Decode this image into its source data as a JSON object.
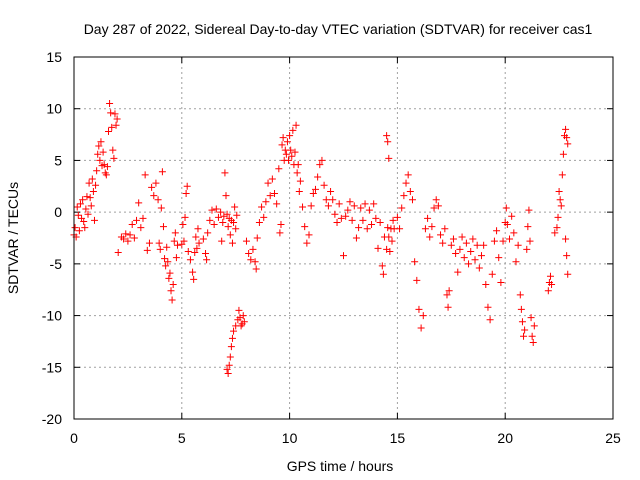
{
  "chart_data": {
    "type": "scatter",
    "title": "Day 287 of 2022, Sidereal Day-to-day VTEC variation (SDTVAR) for receiver cas1",
    "xlabel": "GPS time / hours",
    "ylabel": "SDTVAR / TECUs",
    "xlim": [
      0,
      25
    ],
    "ylim": [
      -20,
      15
    ],
    "xticks": [
      0,
      5,
      10,
      15,
      20,
      25
    ],
    "yticks": [
      -20,
      -15,
      -10,
      -5,
      0,
      5,
      10,
      15
    ],
    "grid": true,
    "marker": "+",
    "color": "#ff0000",
    "series": [
      {
        "name": "SDTVAR",
        "points": [
          [
            0.0,
            -2.2
          ],
          [
            0.05,
            -1.5
          ],
          [
            0.1,
            -2.4
          ],
          [
            0.15,
            0.5
          ],
          [
            0.2,
            -0.3
          ],
          [
            0.25,
            -1.8
          ],
          [
            0.3,
            0.8
          ],
          [
            0.35,
            -0.6
          ],
          [
            0.4,
            1.2
          ],
          [
            0.45,
            -0.9
          ],
          [
            0.5,
            -1.5
          ],
          [
            0.55,
            0.3
          ],
          [
            0.6,
            1.5
          ],
          [
            0.65,
            -0.2
          ],
          [
            0.7,
            2.8
          ],
          [
            0.75,
            1.4
          ],
          [
            0.8,
            0.6
          ],
          [
            0.85,
            3.2
          ],
          [
            0.9,
            2.0
          ],
          [
            0.95,
            -0.8
          ],
          [
            1.0,
            2.6
          ],
          [
            1.05,
            4.0
          ],
          [
            1.1,
            5.6
          ],
          [
            1.15,
            6.4
          ],
          [
            1.2,
            5.0
          ],
          [
            1.25,
            6.8
          ],
          [
            1.3,
            4.5
          ],
          [
            1.35,
            5.8
          ],
          [
            1.4,
            4.6
          ],
          [
            1.45,
            3.8
          ],
          [
            1.5,
            3.6
          ],
          [
            1.55,
            4.4
          ],
          [
            1.6,
            7.8
          ],
          [
            1.65,
            10.5
          ],
          [
            1.7,
            9.6
          ],
          [
            1.75,
            8.2
          ],
          [
            1.8,
            6.0
          ],
          [
            1.85,
            5.2
          ],
          [
            1.9,
            9.5
          ],
          [
            1.95,
            8.4
          ],
          [
            2.0,
            9.0
          ],
          [
            2.05,
            -3.9
          ],
          [
            2.2,
            -2.4
          ],
          [
            2.3,
            -2.6
          ],
          [
            2.4,
            -2.1
          ],
          [
            2.5,
            -2.8
          ],
          [
            2.6,
            -2.2
          ],
          [
            2.7,
            -1.2
          ],
          [
            2.8,
            -2.5
          ],
          [
            2.9,
            -0.8
          ],
          [
            3.0,
            0.9
          ],
          [
            3.1,
            -1.5
          ],
          [
            3.2,
            -0.6
          ],
          [
            3.3,
            3.6
          ],
          [
            3.4,
            -3.7
          ],
          [
            3.5,
            -3.0
          ],
          [
            3.6,
            2.4
          ],
          [
            3.7,
            1.6
          ],
          [
            3.8,
            2.8
          ],
          [
            3.9,
            1.2
          ],
          [
            3.95,
            -3.0
          ],
          [
            4.0,
            -3.6
          ],
          [
            4.05,
            0.4
          ],
          [
            4.1,
            3.9
          ],
          [
            4.15,
            -1.4
          ],
          [
            4.2,
            -4.5
          ],
          [
            4.25,
            -5.2
          ],
          [
            4.3,
            -3.4
          ],
          [
            4.35,
            -4.8
          ],
          [
            4.4,
            -6.4
          ],
          [
            4.45,
            -5.9
          ],
          [
            4.5,
            -7.6
          ],
          [
            4.55,
            -8.5
          ],
          [
            4.6,
            -7.0
          ],
          [
            4.65,
            -2.8
          ],
          [
            4.7,
            -2.0
          ],
          [
            4.75,
            -4.4
          ],
          [
            4.8,
            -3.2
          ],
          [
            5.0,
            -3.1
          ],
          [
            5.05,
            -1.2
          ],
          [
            5.1,
            -2.8
          ],
          [
            5.15,
            -0.5
          ],
          [
            5.2,
            1.8
          ],
          [
            5.25,
            2.5
          ],
          [
            5.3,
            -3.8
          ],
          [
            5.4,
            -4.6
          ],
          [
            5.5,
            -5.8
          ],
          [
            5.55,
            -6.5
          ],
          [
            5.6,
            -3.9
          ],
          [
            5.65,
            -2.4
          ],
          [
            5.7,
            -3.5
          ],
          [
            5.75,
            -1.6
          ],
          [
            5.8,
            -3.0
          ],
          [
            6.0,
            -2.6
          ],
          [
            6.1,
            -4.0
          ],
          [
            6.15,
            -4.6
          ],
          [
            6.2,
            -2.0
          ],
          [
            6.3,
            -0.8
          ],
          [
            6.4,
            0.2
          ],
          [
            6.5,
            -1.2
          ],
          [
            6.6,
            0.3
          ],
          [
            6.7,
            -0.5
          ],
          [
            6.8,
            0.0
          ],
          [
            6.85,
            -2.8
          ],
          [
            6.9,
            -1.0
          ],
          [
            6.95,
            -0.4
          ],
          [
            7.0,
            3.8
          ],
          [
            7.05,
            1.6
          ],
          [
            7.1,
            -0.2
          ],
          [
            7.15,
            -1.4
          ],
          [
            7.2,
            -0.6
          ],
          [
            7.25,
            -2.2
          ],
          [
            7.3,
            -0.8
          ],
          [
            7.35,
            -3.0
          ],
          [
            7.4,
            -1.0
          ],
          [
            7.45,
            0.5
          ],
          [
            7.5,
            -1.6
          ],
          [
            7.55,
            -0.3
          ],
          [
            7.1,
            -15.2
          ],
          [
            7.15,
            -15.6
          ],
          [
            7.2,
            -14.8
          ],
          [
            7.25,
            -14.0
          ],
          [
            7.3,
            -13.0
          ],
          [
            7.35,
            -12.2
          ],
          [
            7.4,
            -11.5
          ],
          [
            7.5,
            -11.0
          ],
          [
            7.6,
            -10.4
          ],
          [
            7.65,
            -9.5
          ],
          [
            7.7,
            -10.2
          ],
          [
            7.75,
            -11.0
          ],
          [
            7.8,
            -10.8
          ],
          [
            7.85,
            -10.0
          ],
          [
            7.9,
            -10.6
          ],
          [
            8.0,
            -2.8
          ],
          [
            8.1,
            -4.0
          ],
          [
            8.2,
            -4.6
          ],
          [
            8.3,
            -3.6
          ],
          [
            8.4,
            -4.8
          ],
          [
            8.45,
            -5.5
          ],
          [
            8.5,
            -2.5
          ],
          [
            8.6,
            -1.0
          ],
          [
            8.7,
            0.5
          ],
          [
            8.8,
            -0.5
          ],
          [
            8.9,
            1.0
          ],
          [
            9.0,
            2.8
          ],
          [
            9.1,
            1.6
          ],
          [
            9.2,
            3.2
          ],
          [
            9.3,
            1.8
          ],
          [
            9.4,
            0.8
          ],
          [
            9.5,
            4.2
          ],
          [
            9.55,
            -2.0
          ],
          [
            9.6,
            -1.2
          ],
          [
            9.65,
            6.5
          ],
          [
            9.7,
            7.2
          ],
          [
            9.75,
            5.0
          ],
          [
            9.8,
            6.0
          ],
          [
            9.85,
            5.6
          ],
          [
            9.9,
            6.8
          ],
          [
            9.95,
            5.0
          ],
          [
            10.0,
            7.4
          ],
          [
            10.05,
            6.0
          ],
          [
            10.1,
            5.4
          ],
          [
            10.15,
            7.9
          ],
          [
            10.2,
            4.6
          ],
          [
            10.25,
            5.8
          ],
          [
            10.3,
            8.4
          ],
          [
            10.35,
            3.8
          ],
          [
            10.4,
            4.6
          ],
          [
            10.45,
            2.0
          ],
          [
            10.5,
            3.0
          ],
          [
            10.6,
            0.5
          ],
          [
            10.7,
            -1.4
          ],
          [
            10.8,
            -3.0
          ],
          [
            10.9,
            -2.2
          ],
          [
            11.0,
            0.6
          ],
          [
            11.1,
            1.8
          ],
          [
            11.2,
            2.2
          ],
          [
            11.3,
            3.4
          ],
          [
            11.4,
            4.6
          ],
          [
            11.5,
            5.0
          ],
          [
            11.6,
            2.6
          ],
          [
            11.7,
            1.2
          ],
          [
            11.8,
            0.6
          ],
          [
            11.9,
            2.0
          ],
          [
            12.0,
            1.2
          ],
          [
            12.1,
            -0.2
          ],
          [
            12.2,
            -1.0
          ],
          [
            12.3,
            0.8
          ],
          [
            12.4,
            -0.6
          ],
          [
            12.5,
            -4.2
          ],
          [
            12.6,
            -0.4
          ],
          [
            12.7,
            0.2
          ],
          [
            12.8,
            1.0
          ],
          [
            12.9,
            -0.8
          ],
          [
            13.0,
            0.6
          ],
          [
            13.1,
            -2.5
          ],
          [
            13.2,
            -1.5
          ],
          [
            13.3,
            0.4
          ],
          [
            13.4,
            -0.8
          ],
          [
            13.5,
            0.8
          ],
          [
            13.6,
            -1.6
          ],
          [
            13.7,
            0.2
          ],
          [
            13.8,
            -1.2
          ],
          [
            13.9,
            0.8
          ],
          [
            14.0,
            -0.6
          ],
          [
            14.1,
            -3.5
          ],
          [
            14.2,
            -1.0
          ],
          [
            14.3,
            -5.2
          ],
          [
            14.35,
            -6.0
          ],
          [
            14.4,
            -2.4
          ],
          [
            14.5,
            -3.6
          ],
          [
            14.55,
            -1.5
          ],
          [
            14.6,
            -2.4
          ],
          [
            14.65,
            -3.8
          ],
          [
            14.7,
            -1.6
          ],
          [
            14.75,
            -2.8
          ],
          [
            14.8,
            -0.8
          ],
          [
            14.85,
            -1.6
          ],
          [
            14.5,
            7.4
          ],
          [
            14.55,
            6.8
          ],
          [
            14.6,
            5.2
          ],
          [
            15.0,
            -0.5
          ],
          [
            15.1,
            -1.6
          ],
          [
            15.2,
            0.4
          ],
          [
            15.3,
            1.6
          ],
          [
            15.4,
            2.8
          ],
          [
            15.5,
            3.6
          ],
          [
            15.6,
            2.0
          ],
          [
            15.7,
            1.2
          ],
          [
            15.8,
            -4.8
          ],
          [
            15.9,
            -6.6
          ],
          [
            16.0,
            -9.4
          ],
          [
            16.1,
            -11.2
          ],
          [
            16.2,
            -10.0
          ],
          [
            16.3,
            -1.6
          ],
          [
            16.4,
            -0.6
          ],
          [
            16.5,
            -2.4
          ],
          [
            16.6,
            -1.4
          ],
          [
            16.7,
            0.4
          ],
          [
            16.8,
            1.2
          ],
          [
            16.9,
            0.6
          ],
          [
            17.0,
            -2.2
          ],
          [
            17.1,
            -3.0
          ],
          [
            17.2,
            -1.6
          ],
          [
            17.3,
            -8.0
          ],
          [
            17.35,
            -9.2
          ],
          [
            17.4,
            -7.6
          ],
          [
            17.5,
            -3.2
          ],
          [
            17.6,
            -2.6
          ],
          [
            17.7,
            -4.0
          ],
          [
            17.8,
            -5.8
          ],
          [
            17.9,
            -3.6
          ],
          [
            18.0,
            -2.4
          ],
          [
            18.1,
            -4.4
          ],
          [
            18.2,
            -3.0
          ],
          [
            18.3,
            -5.0
          ],
          [
            18.4,
            -3.8
          ],
          [
            18.5,
            -2.6
          ],
          [
            18.6,
            -4.6
          ],
          [
            18.7,
            -3.2
          ],
          [
            18.8,
            -5.4
          ],
          [
            18.9,
            -4.2
          ],
          [
            19.0,
            -3.2
          ],
          [
            19.1,
            -7.0
          ],
          [
            19.2,
            -9.2
          ],
          [
            19.3,
            -10.4
          ],
          [
            19.4,
            -6.0
          ],
          [
            19.5,
            -2.8
          ],
          [
            19.6,
            -1.8
          ],
          [
            19.7,
            -4.4
          ],
          [
            19.8,
            -6.8
          ],
          [
            19.9,
            -2.8
          ],
          [
            20.0,
            -1.0
          ],
          [
            20.05,
            0.4
          ],
          [
            20.1,
            -1.2
          ],
          [
            20.2,
            -2.6
          ],
          [
            20.3,
            -0.4
          ],
          [
            20.4,
            -2.0
          ],
          [
            20.5,
            -4.8
          ],
          [
            20.6,
            -3.2
          ],
          [
            20.7,
            -8.0
          ],
          [
            20.75,
            -9.4
          ],
          [
            20.8,
            -10.6
          ],
          [
            20.85,
            -12.0
          ],
          [
            20.9,
            -11.4
          ],
          [
            21.0,
            -3.6
          ],
          [
            21.05,
            -1.4
          ],
          [
            21.1,
            0.2
          ],
          [
            21.15,
            -2.8
          ],
          [
            21.2,
            -10.2
          ],
          [
            21.25,
            -12.0
          ],
          [
            21.3,
            -12.6
          ],
          [
            21.35,
            -11.0
          ],
          [
            22.0,
            -7.6
          ],
          [
            22.05,
            -6.8
          ],
          [
            22.1,
            -6.2
          ],
          [
            22.15,
            -7.0
          ],
          [
            22.3,
            -2.0
          ],
          [
            22.4,
            -1.5
          ],
          [
            22.45,
            -0.5
          ],
          [
            22.5,
            2.0
          ],
          [
            22.55,
            1.2
          ],
          [
            22.6,
            0.6
          ],
          [
            22.65,
            3.6
          ],
          [
            22.7,
            5.6
          ],
          [
            22.75,
            7.4
          ],
          [
            22.8,
            8.0
          ],
          [
            22.85,
            7.2
          ],
          [
            22.9,
            6.6
          ],
          [
            22.8,
            -2.6
          ],
          [
            22.85,
            -4.2
          ],
          [
            22.9,
            -6.0
          ]
        ]
      }
    ]
  }
}
